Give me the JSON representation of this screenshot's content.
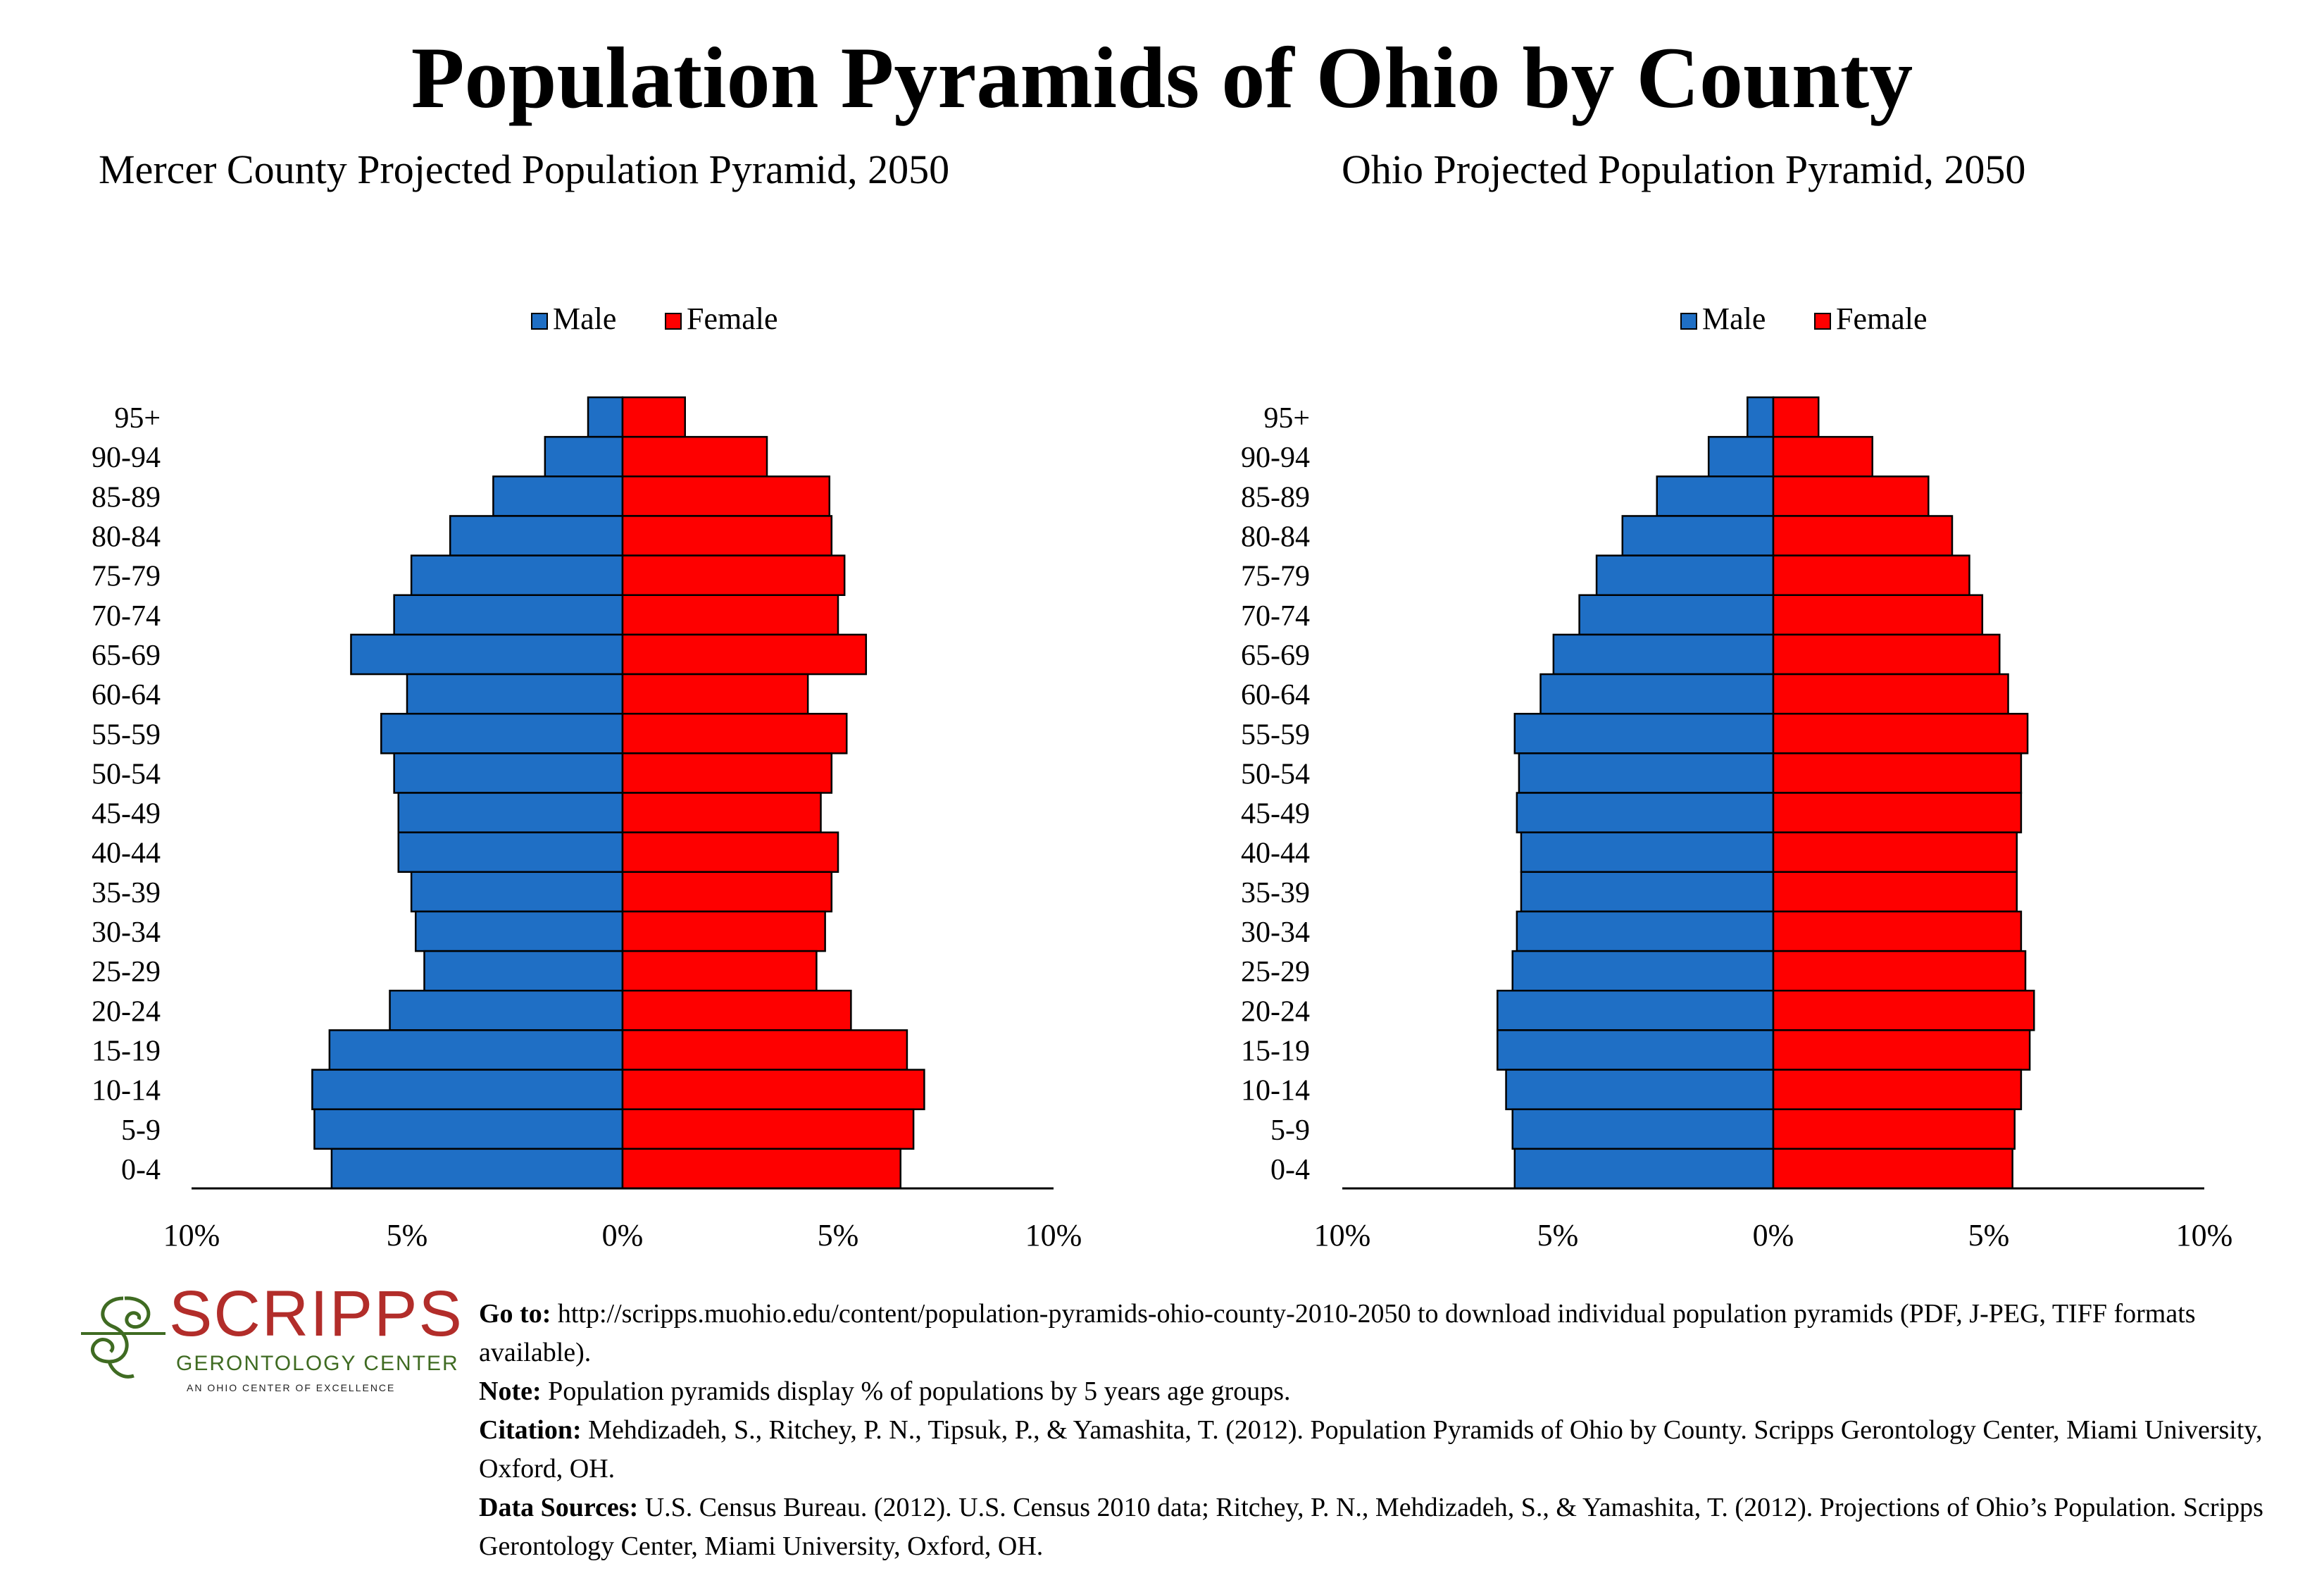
{
  "title": "Population Pyramids of Ohio by County",
  "legend": {
    "male_label": "Male",
    "female_label": "Female",
    "male_color": "#1f6fc5",
    "female_color": "#fe0000"
  },
  "chart_data": [
    {
      "type": "bar",
      "orientation": "horizontal-pyramid",
      "title": "Mercer County Projected Population Pyramid, 2050",
      "categories": [
        "95+",
        "90-94",
        "85-89",
        "80-84",
        "75-79",
        "70-74",
        "65-69",
        "60-64",
        "55-59",
        "50-54",
        "45-49",
        "40-44",
        "35-39",
        "30-34",
        "25-29",
        "20-24",
        "15-19",
        "10-14",
        "5-9",
        "0-4"
      ],
      "series": [
        {
          "name": "Male",
          "values": [
            0.8,
            1.8,
            3.0,
            4.0,
            4.9,
            5.3,
            6.3,
            5.0,
            5.6,
            5.3,
            5.2,
            5.2,
            4.9,
            4.8,
            4.6,
            5.4,
            6.8,
            7.2,
            7.15,
            6.75
          ]
        },
        {
          "name": "Female",
          "values": [
            1.45,
            3.35,
            4.8,
            4.85,
            5.15,
            5.0,
            5.65,
            4.3,
            5.2,
            4.85,
            4.6,
            5.0,
            4.85,
            4.7,
            4.5,
            5.3,
            6.6,
            7.0,
            6.75,
            6.45
          ]
        }
      ],
      "xlim": [
        -10,
        10
      ],
      "xticks": [
        "10%",
        "5%",
        "0%",
        "5%",
        "10%"
      ],
      "legend_position": "top"
    },
    {
      "type": "bar",
      "orientation": "horizontal-pyramid",
      "title": "Ohio Projected Population Pyramid, 2050",
      "categories": [
        "95+",
        "90-94",
        "85-89",
        "80-84",
        "75-79",
        "70-74",
        "65-69",
        "60-64",
        "55-59",
        "50-54",
        "45-49",
        "40-44",
        "35-39",
        "30-34",
        "25-29",
        "20-24",
        "15-19",
        "10-14",
        "5-9",
        "0-4"
      ],
      "series": [
        {
          "name": "Male",
          "values": [
            0.6,
            1.5,
            2.7,
            3.5,
            4.1,
            4.5,
            5.1,
            5.4,
            6.0,
            5.9,
            5.95,
            5.85,
            5.85,
            5.95,
            6.05,
            6.4,
            6.4,
            6.2,
            6.05,
            6.0
          ]
        },
        {
          "name": "Female",
          "values": [
            1.05,
            2.3,
            3.6,
            4.15,
            4.55,
            4.85,
            5.25,
            5.45,
            5.9,
            5.75,
            5.75,
            5.65,
            5.65,
            5.75,
            5.85,
            6.05,
            5.95,
            5.75,
            5.6,
            5.55
          ]
        }
      ],
      "xlim": [
        -10,
        10
      ],
      "xticks": [
        "10%",
        "5%",
        "0%",
        "5%",
        "10%"
      ],
      "legend_position": "top"
    }
  ],
  "logo": {
    "word": "SCRIPPS",
    "subtitle": "GERONTOLOGY CENTER",
    "tagline": "AN OHIO CENTER OF EXCELLENCE"
  },
  "notes": {
    "goto_label": "Go to:",
    "goto_text": "http://scripps.muohio.edu/content/population-pyramids-ohio-county-2010-2050 to download individual population pyramids (PDF, J-PEG, TIFF formats available).",
    "note_label": "Note:",
    "note_text": "Population pyramids display % of populations by 5 years age groups.",
    "citation_label": "Citation:",
    "citation_text": "Mehdizadeh, S., Ritchey, P. N., Tipsuk, P., & Yamashita, T. (2012). Population Pyramids of Ohio by County. Scripps Gerontology Center, Miami University, Oxford, OH.",
    "sources_label": "Data Sources:",
    "sources_text": "U.S. Census Bureau. (2012). U.S. Census 2010 data; Ritchey, P. N., Mehdizadeh, S., & Yamashita, T. (2012). Projections of Ohio’s Population. Scripps Gerontology Center, Miami University, Oxford, OH."
  }
}
